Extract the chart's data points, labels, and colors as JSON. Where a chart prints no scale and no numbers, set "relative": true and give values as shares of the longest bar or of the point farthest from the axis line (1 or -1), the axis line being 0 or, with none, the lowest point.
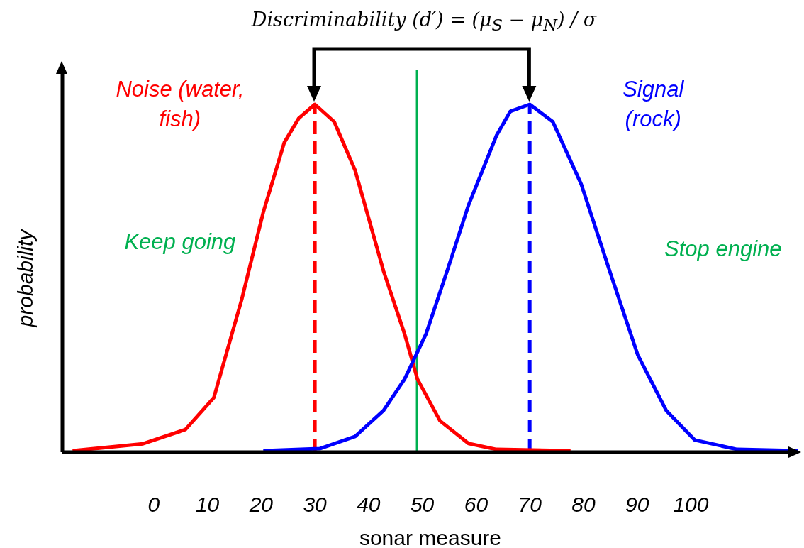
{
  "chart_data": {
    "type": "line",
    "relative": true,
    "xlabel": "sonar measure",
    "ylabel": "probability",
    "xlim": [
      -17,
      120
    ],
    "xticks": [
      0,
      10,
      20,
      30,
      40,
      50,
      60,
      70,
      80,
      90,
      100
    ],
    "series": [
      {
        "name": "Noise (water, fish)",
        "color": "#ff0000",
        "x": [
          -15.1,
          -2,
          5.9,
          11.2,
          16.4,
          20.4,
          24.3,
          27,
          30,
          33.6,
          37.5,
          42.8,
          46.7,
          49.1,
          53.3,
          58.6,
          63.8,
          77.6
        ],
        "values": [
          0.004,
          0.024,
          0.065,
          0.157,
          0.44,
          0.69,
          0.89,
          0.96,
          1,
          0.95,
          0.81,
          0.52,
          0.34,
          0.21,
          0.09,
          0.025,
          0.008,
          0.004
        ]
      },
      {
        "name": "Signal (rock)",
        "color": "#0000ff",
        "x": [
          20.4,
          30.9,
          37.5,
          42.8,
          46.7,
          50.7,
          54.6,
          58.6,
          63.8,
          66.4,
          70,
          74.3,
          79.6,
          84.9,
          90.1,
          95.4,
          100.7,
          108.6,
          120
        ],
        "values": [
          0.004,
          0.01,
          0.045,
          0.12,
          0.21,
          0.34,
          0.52,
          0.71,
          0.91,
          0.98,
          1,
          0.95,
          0.77,
          0.52,
          0.28,
          0.12,
          0.035,
          0.008,
          0.004
        ]
      }
    ],
    "ref_lines": [
      {
        "axis": "x",
        "value": 30,
        "color": "#ff0000",
        "line_style": "dashed"
      },
      {
        "axis": "x",
        "value": 70,
        "color": "#0000ff",
        "line_style": "dashed"
      },
      {
        "axis": "x",
        "value": 49,
        "color": "#00b050",
        "line_style": "solid"
      }
    ],
    "annotations": [
      "Discriminability (d′) = (μ$_{S}$ − μ$_{N}$) / σ",
      "Keep going",
      "Stop engine"
    ],
    "marker": "none",
    "line_style": "solid",
    "grid": false,
    "legend": false
  }
}
